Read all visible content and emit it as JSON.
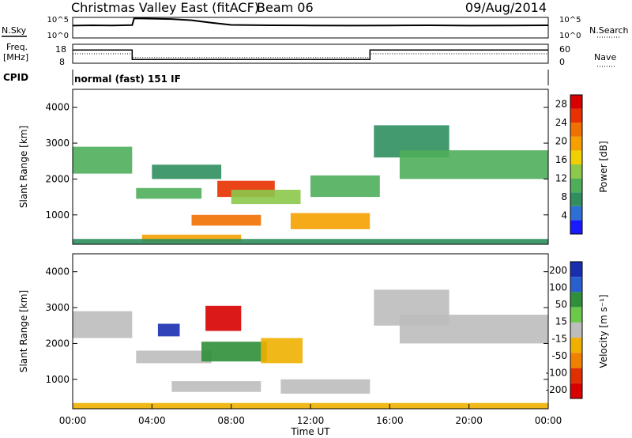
{
  "header": {
    "title": "Christmas Valley East (fitACF)",
    "beam": "Beam 06",
    "date": "09/Aug/2014"
  },
  "labels": {
    "nsky": "N.Sky",
    "nsearch": "N.Search",
    "freq_line1": "Freq.",
    "freq_line2": "[MHz]",
    "nave": "Nave",
    "cpid": "CPID",
    "cpid_value": "normal (fast) 151 IF",
    "noise_left_ticks": [
      "10^5",
      "10^0"
    ],
    "noise_right_ticks": [
      "10^5",
      "10^0"
    ],
    "freq_left_ticks": [
      "18",
      "8"
    ],
    "freq_right_ticks": [
      "60",
      "0"
    ]
  },
  "colors": {
    "power_scale": [
      "#1a1aff",
      "#2e6fd6",
      "#2f8f5e",
      "#4fae5a",
      "#8cc84a",
      "#f0d000",
      "#f5a000",
      "#f07000",
      "#e83000",
      "#d80000"
    ],
    "velocity_scale": [
      "#1a2fb0",
      "#2a5fd0",
      "#2f8f3a",
      "#6cc84a",
      "#bdbdbd",
      "#f0b000",
      "#f08000",
      "#e03000",
      "#d80000"
    ]
  },
  "chart_data": [
    {
      "type": "line",
      "title": "N.Sky / N.Search noise",
      "ylim": [
        1,
        100000
      ],
      "xlim": [
        0,
        24
      ],
      "y_ticks": [
        "10^5",
        "10^0"
      ],
      "series": [
        {
          "name": "N.Sky",
          "x": [
            0,
            1,
            2,
            3,
            3.1,
            4,
            5,
            6,
            7,
            8,
            10,
            12,
            14,
            16,
            18,
            20,
            22,
            24
          ],
          "values": [
            1000,
            1200,
            1100,
            1300,
            60000,
            50000,
            40000,
            20000,
            5000,
            1500,
            1200,
            1100,
            1000,
            1100,
            1200,
            1000,
            1100,
            1200
          ]
        }
      ]
    },
    {
      "type": "line",
      "title": "Frequency / Nave",
      "xlim": [
        0,
        24
      ],
      "series": [
        {
          "name": "Freq. [MHz]",
          "x": [
            0,
            3.0,
            3.0,
            15.0,
            15.0,
            24
          ],
          "values": [
            15,
            15,
            10,
            10,
            15,
            15
          ]
        },
        {
          "name": "Nave",
          "x": [
            0,
            3,
            3,
            15,
            15,
            24
          ],
          "values": [
            30,
            30,
            18,
            18,
            30,
            30
          ]
        }
      ]
    },
    {
      "type": "heatmap",
      "title": "Power",
      "xlabel": "",
      "ylabel": "Slant Range [km]",
      "colorbar_label": "Power [dB]",
      "xlim": [
        0,
        24
      ],
      "ylim": [
        180,
        4500
      ],
      "y_ticks": [
        1000,
        2000,
        3000,
        4000
      ],
      "colorbar_ticks": [
        4,
        8,
        12,
        16,
        20,
        24,
        28
      ],
      "colorbar_range": [
        0,
        30
      ],
      "echo_regions": [
        {
          "x0": 0.0,
          "x1": 3.0,
          "y0": 2150,
          "y1": 2900,
          "value": 10
        },
        {
          "x0": 3.2,
          "x1": 6.5,
          "y0": 1450,
          "y1": 1750,
          "value": 9
        },
        {
          "x0": 4.0,
          "x1": 7.5,
          "y0": 2000,
          "y1": 2400,
          "value": 8
        },
        {
          "x0": 7.3,
          "x1": 10.2,
          "y0": 1500,
          "y1": 1950,
          "value": 24
        },
        {
          "x0": 6.0,
          "x1": 9.5,
          "y0": 700,
          "y1": 1000,
          "value": 22
        },
        {
          "x0": 8.0,
          "x1": 11.5,
          "y0": 1300,
          "y1": 1700,
          "value": 13
        },
        {
          "x0": 11.0,
          "x1": 15.0,
          "y0": 600,
          "y1": 1050,
          "value": 18
        },
        {
          "x0": 3.5,
          "x1": 8.5,
          "y0": 250,
          "y1": 450,
          "value": 20
        },
        {
          "x0": 12.0,
          "x1": 15.5,
          "y0": 1500,
          "y1": 2100,
          "value": 9
        },
        {
          "x0": 15.2,
          "x1": 19.0,
          "y0": 2600,
          "y1": 3500,
          "value": 7
        },
        {
          "x0": 16.5,
          "x1": 24.0,
          "y0": 2000,
          "y1": 2800,
          "value": 9
        },
        {
          "x0": 0.0,
          "x1": 24.0,
          "y0": 180,
          "y1": 330,
          "value": 6
        }
      ]
    },
    {
      "type": "heatmap",
      "title": "Velocity",
      "xlabel": "Time UT",
      "ylabel": "Slant Range [km]",
      "colorbar_label": "Velocity [m s⁻¹]",
      "x_ticks": [
        "00:00",
        "04:00",
        "08:00",
        "12:00",
        "16:00",
        "20:00",
        "00:00"
      ],
      "xlim": [
        0,
        24
      ],
      "ylim": [
        180,
        4500
      ],
      "y_ticks": [
        1000,
        2000,
        3000,
        4000
      ],
      "colorbar_ticks": [
        200,
        100,
        50,
        15,
        -15,
        -50,
        -100,
        -200
      ],
      "echo_regions": [
        {
          "x0": 0.0,
          "x1": 3.0,
          "y0": 2150,
          "y1": 2900,
          "value": 0
        },
        {
          "x0": 3.2,
          "x1": 7.0,
          "y0": 1450,
          "y1": 1800,
          "value": 0
        },
        {
          "x0": 4.3,
          "x1": 5.4,
          "y0": 2200,
          "y1": 2550,
          "value": 180
        },
        {
          "x0": 6.7,
          "x1": 8.5,
          "y0": 2350,
          "y1": 3050,
          "value": -180
        },
        {
          "x0": 6.5,
          "x1": 9.8,
          "y0": 1500,
          "y1": 2050,
          "value": 60
        },
        {
          "x0": 9.5,
          "x1": 11.6,
          "y0": 1450,
          "y1": 2150,
          "value": -40
        },
        {
          "x0": 5.0,
          "x1": 9.5,
          "y0": 650,
          "y1": 950,
          "value": 0
        },
        {
          "x0": 10.5,
          "x1": 15.0,
          "y0": 600,
          "y1": 1000,
          "value": 0
        },
        {
          "x0": 15.2,
          "x1": 19.0,
          "y0": 2500,
          "y1": 3500,
          "value": 0
        },
        {
          "x0": 16.5,
          "x1": 24.0,
          "y0": 2000,
          "y1": 2800,
          "value": 0
        },
        {
          "x0": 0.0,
          "x1": 24.0,
          "y0": 180,
          "y1": 340,
          "value": -30
        }
      ]
    }
  ]
}
